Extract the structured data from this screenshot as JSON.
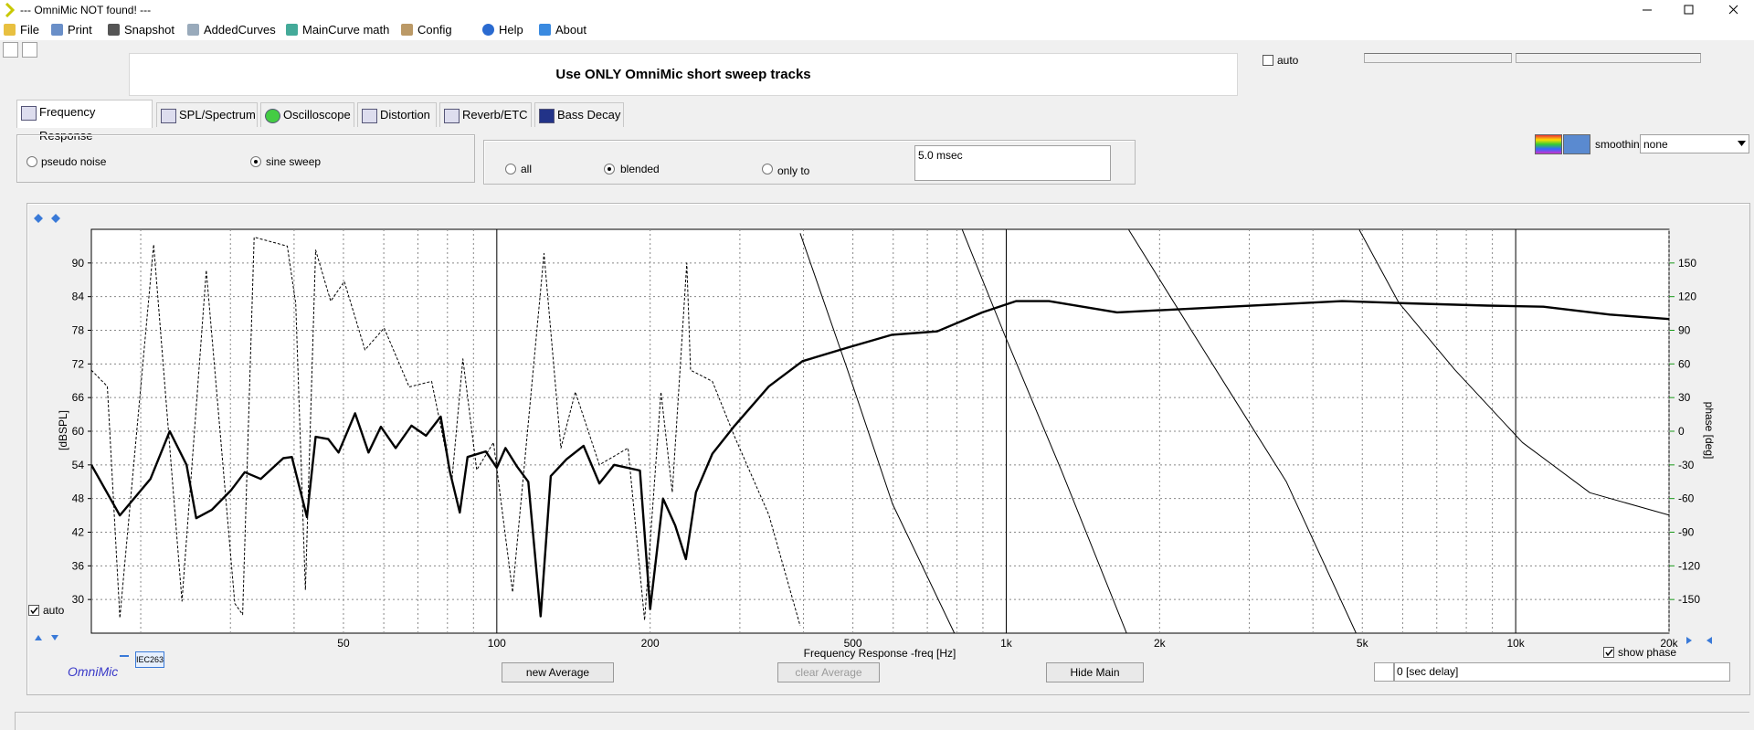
{
  "window": {
    "title": "--- OmniMic NOT found! ---"
  },
  "menu": [
    "File",
    "Print",
    "Snapshot",
    "AddedCurves",
    "MainCurve math",
    "Config",
    "Help",
    "About"
  ],
  "banner": "Use ONLY OmniMic short sweep tracks",
  "auto_top": {
    "label": "auto",
    "checked": false
  },
  "tabs": [
    "Frequency Response",
    "SPL/Spectrum",
    "Oscilloscope",
    "Distortion",
    "Reverb/ETC",
    "Bass Decay"
  ],
  "signal": {
    "options": [
      "pseudo noise",
      "sine sweep"
    ],
    "selected": 1
  },
  "window_mode": {
    "options": [
      "all",
      "blended",
      "only to"
    ],
    "selected": 1,
    "time": "5.0 msec"
  },
  "smoothing": {
    "label": "smoothing",
    "value": "none"
  },
  "chart_data": {
    "type": "line",
    "x_label": "Frequency Response -freq [Hz]",
    "y_label": "[dBSPL]",
    "y2_label": "phase [deg]",
    "xscale": "log",
    "xlim": [
      16,
      20000
    ],
    "ylim": [
      24,
      96
    ],
    "y2lim": [
      -180,
      180
    ],
    "xticks": [
      50,
      100,
      200,
      500,
      {
        "value": 1000,
        "label": "1k"
      },
      {
        "value": 2000,
        "label": "2k"
      },
      {
        "value": 5000,
        "label": "5k"
      },
      {
        "value": 10000,
        "label": "10k"
      },
      {
        "value": 20000,
        "label": "20k"
      }
    ],
    "xgrid": [
      20,
      30,
      40,
      60,
      70,
      80,
      90,
      300,
      400,
      600,
      700,
      800,
      900,
      3000,
      4000,
      6000,
      7000,
      8000,
      9000
    ],
    "yticks": [
      30,
      36,
      42,
      48,
      54,
      60,
      66,
      72,
      78,
      84,
      90
    ],
    "y2ticks": [
      -150,
      -120,
      -90,
      -60,
      -30,
      0,
      30,
      60,
      90,
      120,
      150
    ],
    "y2tick_color": "#1a9a1a",
    "series": [
      {
        "color": "#000000",
        "line_width": 2.4,
        "dash": "none",
        "x": [
          16,
          18.2,
          20.9,
          22.8,
          24.6,
          25.7,
          27.6,
          30.1,
          32,
          34.4,
          38.1,
          39.6,
          42.4,
          44.1,
          46.7,
          48.9,
          52.7,
          56,
          59.2,
          63.3,
          68,
          72.6,
          77.6,
          80.8,
          84.6,
          87.6,
          95.1,
          100,
          104,
          109.6,
          115.3,
          121.9,
          127.6,
          137,
          148,
          159,
          170,
          191,
          200,
          212,
          224,
          235,
          246,
          265,
          293,
          342,
          398,
          488,
          597,
          732,
          898,
          1045,
          1213,
          1650,
          2750,
          4560,
          6150,
          8800,
          11330,
          15300,
          20000
        ],
        "values": [
          54,
          45,
          51.5,
          60,
          54,
          44.5,
          46,
          49.5,
          52.7,
          51.5,
          55.2,
          55.4,
          44.7,
          59,
          58.6,
          56.2,
          63.2,
          56.2,
          60.8,
          57,
          61,
          59.2,
          62.6,
          53,
          45.5,
          55.4,
          56.4,
          53.5,
          57,
          53.7,
          51,
          27,
          52,
          55,
          57.4,
          50.7,
          54,
          53,
          28.3,
          48,
          43.2,
          37.2,
          49.1,
          56,
          61,
          68,
          72.5,
          74.9,
          77.2,
          77.8,
          81.2,
          83.2,
          83.2,
          81.2,
          82.2,
          83.2,
          82.8,
          82.4,
          82.2,
          80.8,
          80
        ]
      },
      {
        "color": "#000000",
        "line_width": 1,
        "dash": "3,2",
        "x": [
          16,
          17.2,
          18.2,
          21.2,
          24.1,
          26.9,
          30.6,
          31.7,
          33.4,
          38.8,
          40.3,
          42.1,
          44.1,
          47.2,
          50.2,
          55.1,
          60.1,
          67.3,
          74.5,
          81.6,
          85.8,
          91.3,
          98.5,
          107.4,
          123.8,
          133.6,
          142.6,
          159,
          181,
          195,
          210,
          221,
          236,
          240,
          265,
          293,
          342,
          394
        ],
        "values": [
          70.9,
          68,
          26.7,
          93.3,
          29.7,
          88.7,
          29.3,
          27.3,
          94.6,
          93,
          82.8,
          31.7,
          92.3,
          83.2,
          86.7,
          74.5,
          78.4,
          67.9,
          68.9,
          51.1,
          72.9,
          53.1,
          58,
          31.3,
          91.7,
          57,
          67,
          54,
          57,
          26.3,
          67,
          49.1,
          90,
          70.9,
          68.9,
          59,
          45.1,
          25.3
        ]
      },
      {
        "color": "#000000",
        "line_width": 1,
        "dash": "none",
        "axis": "y2",
        "x": [
          394,
          488,
          598,
          791,
          null,
          820,
          995,
          1283,
          1723,
          null,
          1740,
          2134,
          2749,
          3545,
          4861,
          null,
          4934,
          5895,
          7596,
          10310,
          13990,
          20000
        ],
        "values": [
          176.5,
          54.8,
          -64.8,
          -180,
          null,
          179.5,
          84.7,
          -34.9,
          -180,
          null,
          179.5,
          114.7,
          34.9,
          -44.9,
          -180,
          null,
          179.5,
          114.7,
          54.8,
          -10,
          -54.8,
          -74.8
        ]
      }
    ]
  },
  "auto_scale": {
    "label": "auto",
    "checked": true
  },
  "show_phase": {
    "label": "show phase",
    "checked": true
  },
  "brand": "OmniMic",
  "mic_badge": "IEC263",
  "buttons": [
    "new Average",
    "clear Average",
    "Hide Main"
  ],
  "delay": "0 [sec delay]"
}
